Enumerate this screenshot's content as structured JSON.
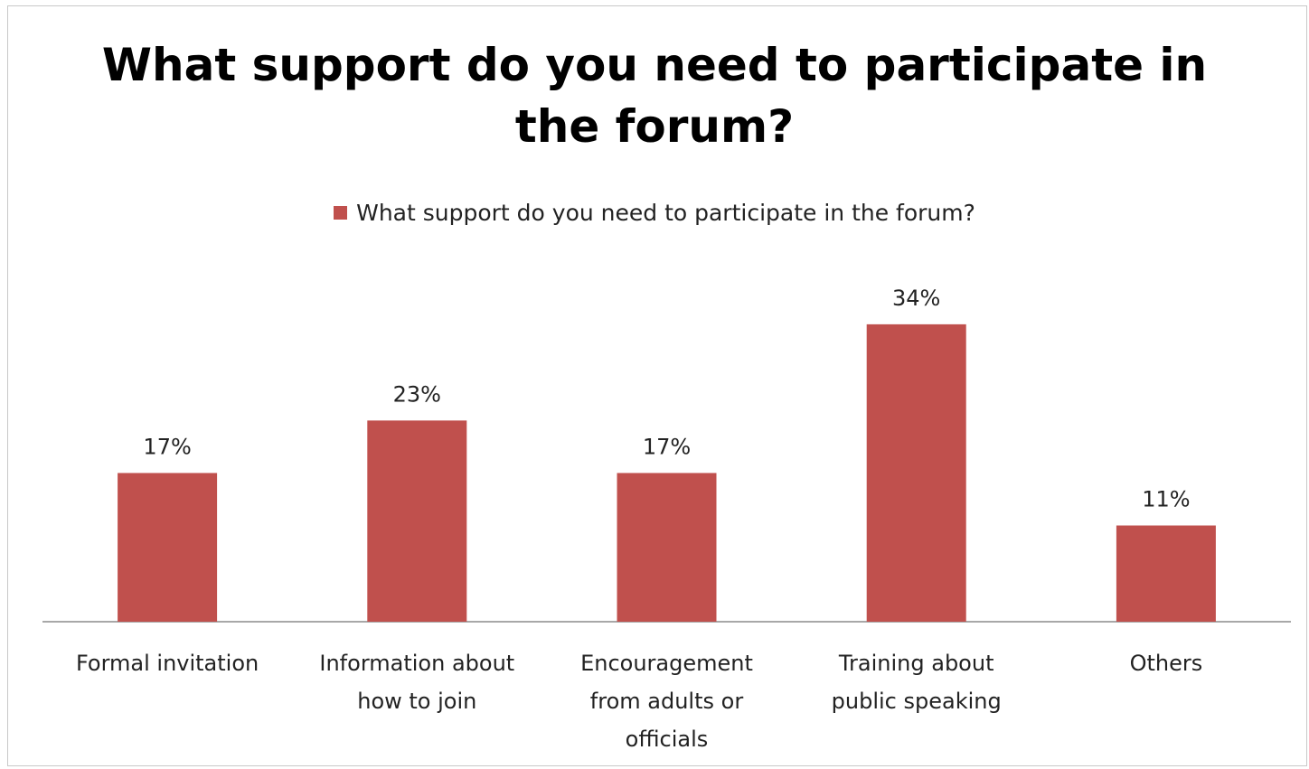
{
  "chart_data": {
    "type": "bar",
    "title": "What support do you need to participate in the forum?",
    "title_lines": [
      "What support do you need to participate in",
      "the forum?"
    ],
    "legend": [
      "What support do you need to participate in the forum?"
    ],
    "legend_position": "top",
    "categories": [
      [
        "Formal invitation"
      ],
      [
        "Information about",
        "how to join"
      ],
      [
        "Encouragement",
        "from adults or",
        "officials"
      ],
      [
        "Training about",
        "public speaking"
      ],
      [
        "Others"
      ]
    ],
    "series": [
      {
        "name": "What support do you need to participate in the forum?",
        "values": [
          17,
          23,
          17,
          34,
          11
        ],
        "labels": [
          "17%",
          "23%",
          "17%",
          "34%",
          "11%"
        ],
        "color": "#c0504d"
      }
    ],
    "ylim": [
      0,
      40
    ],
    "grid": false,
    "xlabel": "",
    "ylabel": ""
  }
}
